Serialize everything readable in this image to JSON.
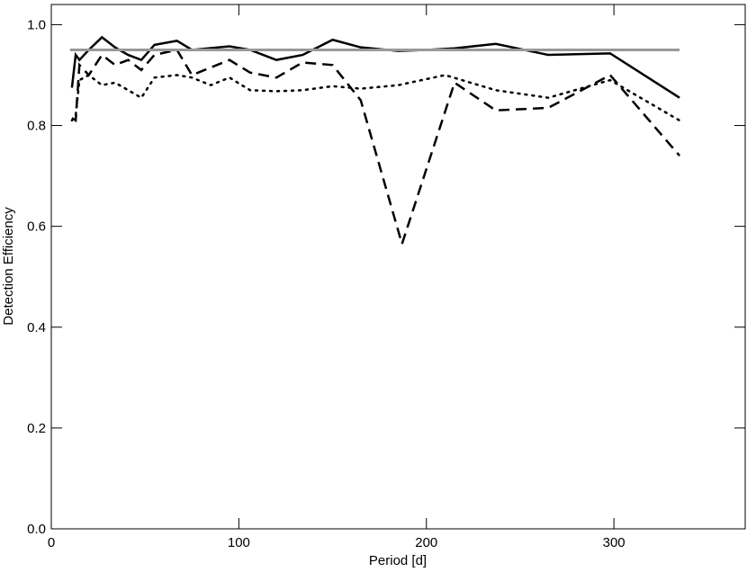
{
  "chart_data": {
    "type": "line",
    "xlabel": "Period [d]",
    "ylabel": "Detection Efficiency",
    "xlim": [
      0,
      370
    ],
    "ylim": [
      0,
      1.04
    ],
    "xticks": [
      0,
      100,
      200,
      300
    ],
    "yticks": [
      {
        "value": 0,
        "label": "0.0"
      },
      {
        "value": 0.2,
        "label": "0.2"
      },
      {
        "value": 0.4,
        "label": "0.4"
      },
      {
        "value": 0.6,
        "label": "0.6"
      },
      {
        "value": 0.8,
        "label": "0.8"
      },
      {
        "value": 1,
        "label": "1.0"
      }
    ],
    "series": [
      {
        "color": "#000000",
        "dash": "solid",
        "x": [
          11,
          13,
          15,
          20,
          27,
          34,
          41,
          48,
          55,
          67,
          75,
          95,
          106,
          120,
          134,
          150,
          165,
          185,
          200,
          215,
          237,
          265,
          298,
          335
        ],
        "values": [
          0.875,
          0.94,
          0.93,
          0.95,
          0.975,
          0.955,
          0.94,
          0.93,
          0.96,
          0.968,
          0.95,
          0.957,
          0.95,
          0.93,
          0.94,
          0.97,
          0.955,
          0.948,
          0.95,
          0.953,
          0.962,
          0.94,
          0.943,
          0.855
        ]
      },
      {
        "color": "#000000",
        "dash": "dashed",
        "x": [
          11,
          13,
          15,
          20,
          27,
          34,
          41,
          48,
          55,
          67,
          75,
          95,
          106,
          120,
          134,
          150,
          165,
          187,
          215,
          237,
          265,
          298,
          335
        ],
        "values": [
          0.815,
          0.81,
          0.92,
          0.9,
          0.94,
          0.92,
          0.93,
          0.91,
          0.94,
          0.95,
          0.9,
          0.93,
          0.905,
          0.895,
          0.925,
          0.92,
          0.85,
          0.565,
          0.885,
          0.83,
          0.835,
          0.9,
          0.74
        ]
      },
      {
        "color": "#000000",
        "dash": "dotted",
        "x": [
          11,
          13,
          15,
          20,
          27,
          34,
          41,
          48,
          55,
          67,
          75,
          85,
          95,
          106,
          120,
          134,
          150,
          165,
          185,
          210,
          237,
          265,
          298,
          335
        ],
        "values": [
          0.81,
          0.82,
          0.89,
          0.9,
          0.88,
          0.885,
          0.87,
          0.855,
          0.895,
          0.9,
          0.895,
          0.88,
          0.895,
          0.87,
          0.868,
          0.87,
          0.878,
          0.873,
          0.88,
          0.9,
          0.87,
          0.855,
          0.89,
          0.81
        ]
      },
      {
        "color": "#999999",
        "dash": "solid",
        "x": [
          10,
          335
        ],
        "values": [
          0.95,
          0.95
        ]
      }
    ]
  }
}
